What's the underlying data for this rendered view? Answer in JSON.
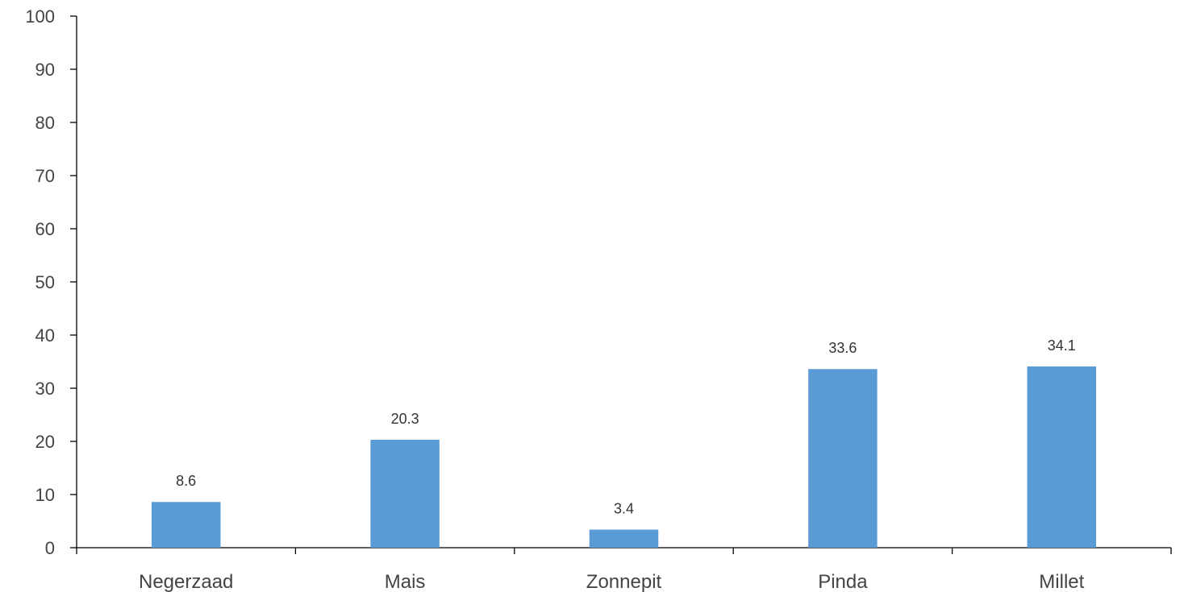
{
  "chart_data": {
    "type": "bar",
    "title": "",
    "xlabel": "",
    "ylabel": "",
    "categories": [
      "Negerzaad",
      "Mais",
      "Zonnepit",
      "Pinda",
      "Millet"
    ],
    "values": [
      8.6,
      20.3,
      3.4,
      33.6,
      34.1
    ],
    "data_labels": [
      "8.6",
      "20.3",
      "3.4",
      "33.6",
      "34.1"
    ],
    "ylim": [
      0,
      100
    ],
    "yticks": [
      0,
      10,
      20,
      30,
      40,
      50,
      60,
      70,
      80,
      90,
      100
    ],
    "grid": false,
    "legend": "none",
    "bar_color": "#5B9BD5",
    "axis_color": "#000000"
  }
}
